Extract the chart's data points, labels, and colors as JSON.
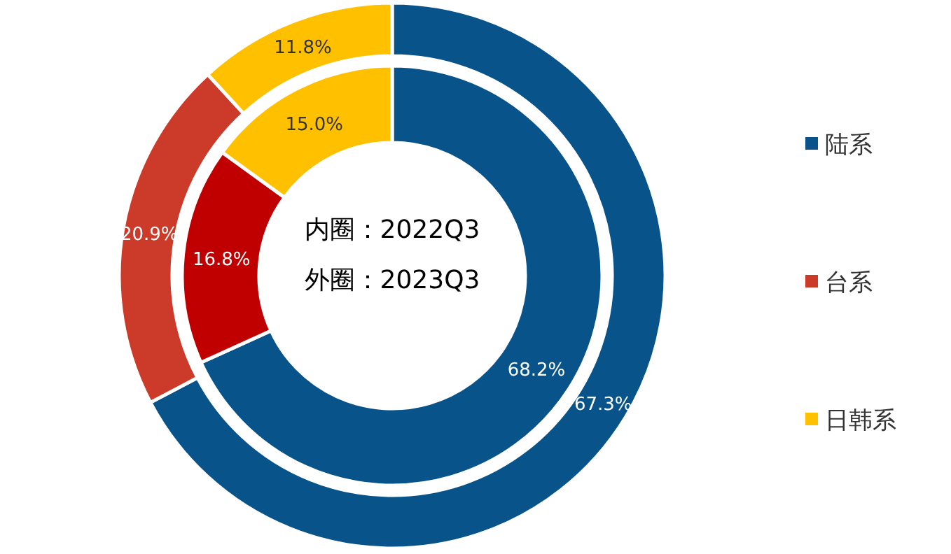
{
  "chart_data": [
    {
      "type": "donut",
      "categories": [
        null,
        null,
        null
      ],
      "values": [
        68.2,
        16.8,
        15.0
      ],
      "colors": [
        "#07538a",
        "#c00000",
        "#ffc000"
      ],
      "value_labels": [
        "68.2%",
        "16.8%",
        "15.0%"
      ],
      "annotations": [
        "内圈：2022Q3"
      ]
    },
    {
      "type": "donut",
      "categories": [
        "陆系",
        "台系",
        "日韩系"
      ],
      "values": [
        67.3,
        20.9,
        11.8
      ],
      "colors": [
        "#07538a",
        "#cc3a2a",
        "#ffc000"
      ],
      "value_labels": [
        "67.3%",
        "20.9%",
        "11.8%"
      ],
      "annotations": [
        "外圈：2023Q3"
      ],
      "legend": "right"
    }
  ]
}
